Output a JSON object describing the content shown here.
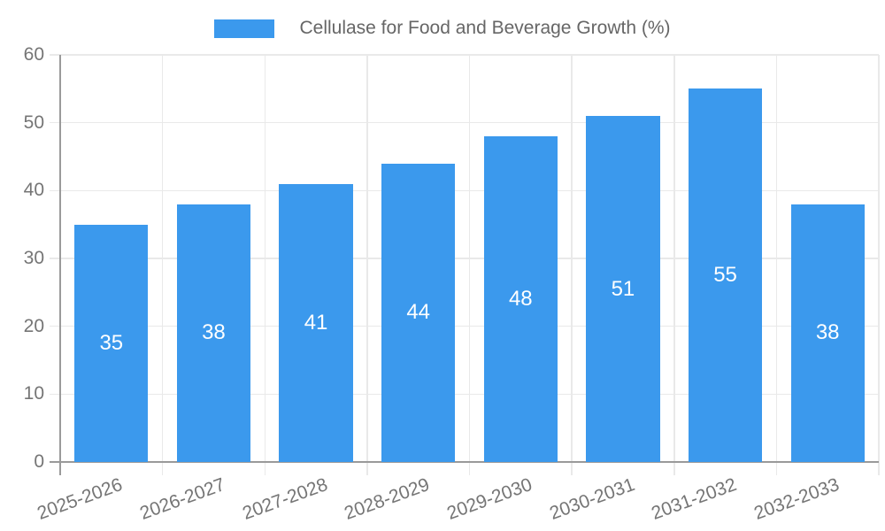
{
  "chart_data": {
    "type": "bar",
    "title": "Cellulase for Food and Beverage Growth (%)",
    "categories": [
      "2025-2026",
      "2026-2027",
      "2027-2028",
      "2028-2029",
      "2029-2030",
      "2030-2031",
      "2031-2032",
      "2032-2033"
    ],
    "values": [
      35,
      38,
      41,
      44,
      48,
      51,
      55,
      38
    ],
    "xlabel": "",
    "ylabel": "",
    "ylim": [
      0,
      60
    ],
    "yticks": [
      0,
      10,
      20,
      30,
      40,
      50,
      60
    ],
    "grid": true,
    "legend_position": "top",
    "value_labels": "centered-in-bar",
    "colors": {
      "bar": "#3b99ed",
      "value_label": "#ffffff",
      "grid": "#e9e9e9",
      "axis": "#9a9a9a",
      "tick_label": "#757575",
      "title": "#666666",
      "background": "#ffffff"
    }
  }
}
